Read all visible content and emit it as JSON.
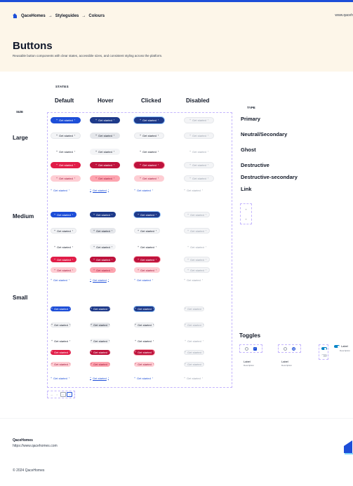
{
  "breadcrumb": {
    "home": "QaceHomes",
    "styleguides": "Styleguides",
    "colours": "Colours",
    "separator": "→"
  },
  "site_url": "www.qaceh",
  "page": {
    "title": "Buttons",
    "description": "Reusable button components with clear states, accessible sizes, and consistent styling across the platform."
  },
  "labels": {
    "states": "STATES",
    "size": "SIZE",
    "type": "TYPE"
  },
  "states": [
    "Default",
    "Hover",
    "Clicked",
    "Disabled"
  ],
  "sizes": [
    "Large",
    "Medium",
    "Small"
  ],
  "types": [
    "Primary",
    "Neutral/Secondary",
    "Ghost",
    "Destructive",
    "Destructive-secondary",
    "Link"
  ],
  "button_label": "Get started",
  "button_icon_leading": "+",
  "button_icon_trailing": "›",
  "icon_stack": [
    "+",
    "+"
  ],
  "pager": [
    "—",
    "○",
    "□",
    "□"
  ],
  "toggles": {
    "title": "Toggles",
    "label": "Label",
    "description": "Description"
  },
  "footer": {
    "brand": "QaceHomes",
    "url": "https://www.qacehomes.com",
    "copyright": "© 2024 QaceHomes"
  },
  "colors": {
    "primary": "#1d4ed8",
    "destructive": "#e11d48",
    "hero_bg": "#fdf6e9",
    "accent_frame": "#c4b5fd"
  }
}
